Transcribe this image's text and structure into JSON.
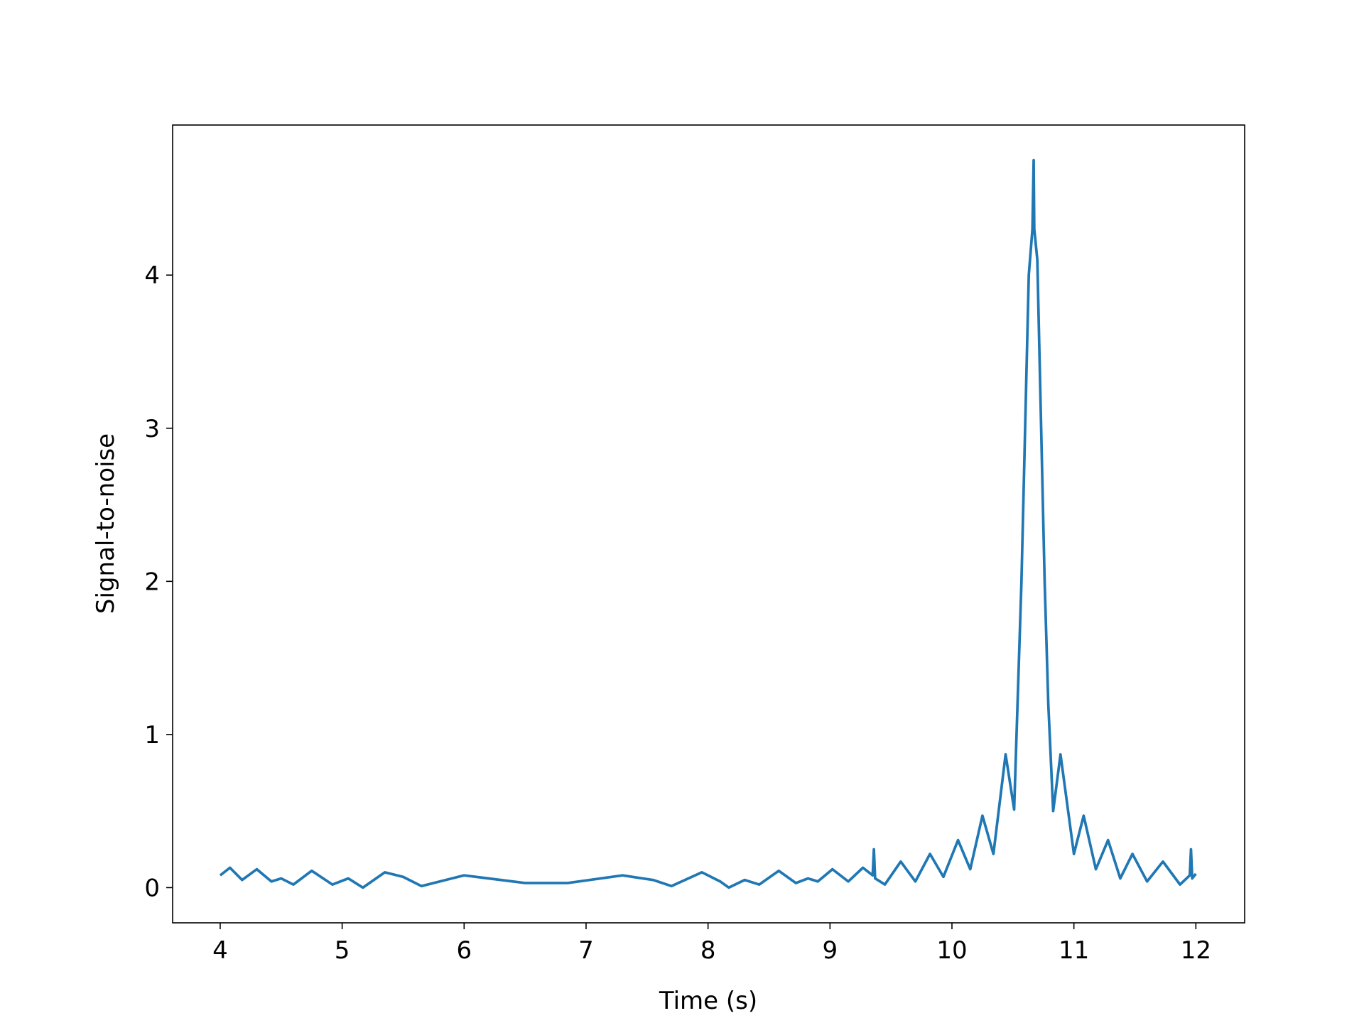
{
  "chart_data": {
    "type": "line",
    "x_label": "Time (s)",
    "y_label": "Signal-to-noise",
    "x": [
      4.0,
      4.08,
      4.18,
      4.3,
      4.42,
      4.5,
      4.6,
      4.75,
      4.92,
      5.05,
      5.17,
      5.35,
      5.5,
      5.65,
      6.0,
      6.2,
      6.5,
      6.85,
      7.3,
      7.55,
      7.7,
      7.95,
      8.1,
      8.17,
      8.3,
      8.42,
      8.58,
      8.72,
      8.82,
      8.9,
      9.02,
      9.15,
      9.27,
      9.35,
      9.36,
      9.37,
      9.45,
      9.58,
      9.7,
      9.82,
      9.93,
      10.05,
      10.15,
      10.25,
      10.34,
      10.44,
      10.51,
      10.57,
      10.63,
      10.66,
      10.67,
      10.675,
      10.7,
      10.76,
      10.79,
      10.83,
      10.89,
      11.0,
      11.08,
      11.18,
      11.28,
      11.38,
      11.48,
      11.6,
      11.73,
      11.87,
      11.95,
      11.96,
      11.97,
      12.0
    ],
    "series": [
      {
        "name": "Signal-to-noise",
        "color": "#1f77b4",
        "values": [
          0.08,
          0.13,
          0.05,
          0.12,
          0.04,
          0.06,
          0.02,
          0.11,
          0.02,
          0.06,
          0.0,
          0.1,
          0.07,
          0.01,
          0.08,
          0.06,
          0.03,
          0.03,
          0.08,
          0.05,
          0.01,
          0.1,
          0.04,
          0.0,
          0.05,
          0.02,
          0.11,
          0.03,
          0.06,
          0.04,
          0.12,
          0.04,
          0.13,
          0.08,
          0.25,
          0.06,
          0.02,
          0.17,
          0.04,
          0.22,
          0.07,
          0.31,
          0.12,
          0.47,
          0.22,
          0.87,
          0.51,
          2.0,
          4.0,
          4.3,
          4.75,
          4.3,
          4.1,
          2.0,
          1.2,
          0.5,
          0.87,
          0.22,
          0.47,
          0.12,
          0.31,
          0.06,
          0.22,
          0.04,
          0.17,
          0.02,
          0.08,
          0.25,
          0.06,
          0.09
        ]
      }
    ],
    "xlim": [
      3.61,
      12.4
    ],
    "ylim": [
      -0.23,
      4.98
    ],
    "xticks": [
      4,
      5,
      6,
      7,
      8,
      9,
      10,
      11,
      12
    ],
    "yticks": [
      0,
      1,
      2,
      3,
      4
    ]
  }
}
